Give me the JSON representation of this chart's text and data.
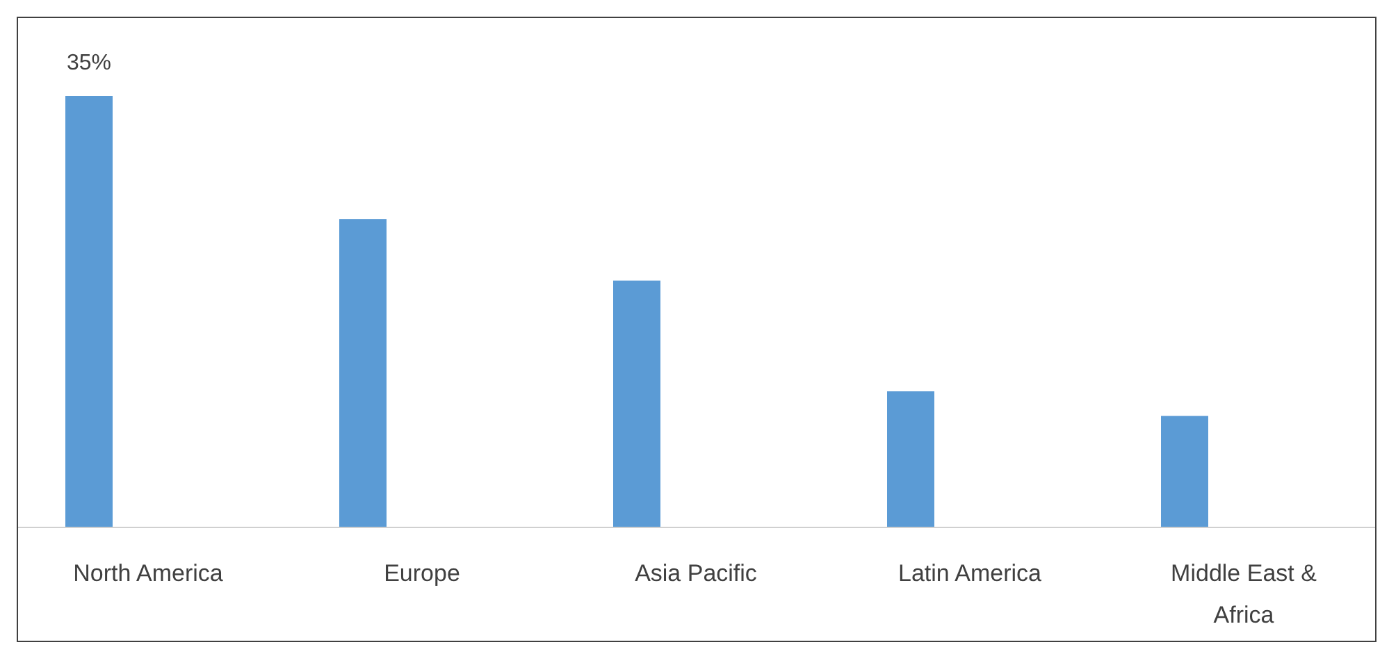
{
  "chart_data": {
    "type": "bar",
    "categories": [
      "North America",
      "Europe",
      "Asia Pacific",
      "Latin America",
      "Middle East & Africa"
    ],
    "values": [
      35,
      25,
      20,
      11,
      9
    ],
    "value_labels": [
      "35%",
      null,
      null,
      null,
      null
    ],
    "color": "#5b9bd5"
  }
}
